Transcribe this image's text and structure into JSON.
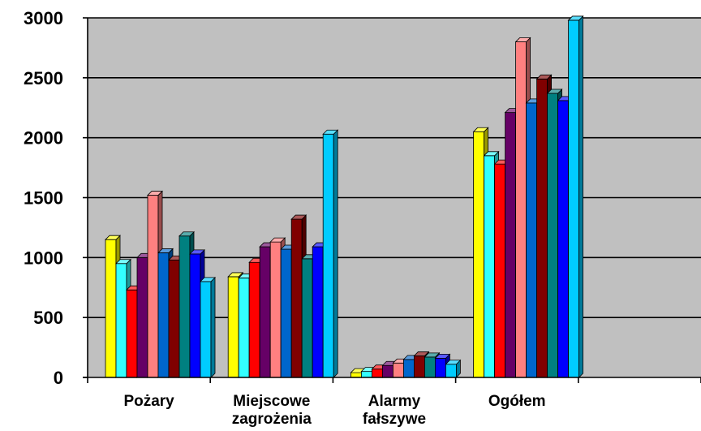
{
  "chart_data": {
    "type": "bar",
    "title": "",
    "xlabel": "",
    "ylabel": "",
    "ylim": [
      0,
      3000
    ],
    "yticks": [
      0,
      500,
      1000,
      1500,
      2000,
      2500,
      3000
    ],
    "ytick_labels": [
      "0",
      "500",
      "1000",
      "1500",
      "2000",
      "2500",
      "3000"
    ],
    "grid": true,
    "legend": "none",
    "plot_background": "#c0c0c0",
    "categories": [
      [
        "Pożary"
      ],
      [
        "Miejscowe",
        "zagrożenia"
      ],
      [
        "Alarmy",
        "fałszywe"
      ],
      [
        "Ogółem"
      ],
      [
        ""
      ]
    ],
    "series": [
      {
        "color": "#ffff00",
        "values": [
          1150,
          840,
          40,
          2050,
          null
        ]
      },
      {
        "color": "#33ffff",
        "values": [
          950,
          830,
          50,
          1850,
          null
        ]
      },
      {
        "color": "#ff0000",
        "values": [
          730,
          960,
          70,
          1780,
          null
        ]
      },
      {
        "color": "#660066",
        "values": [
          1000,
          1090,
          100,
          2210,
          null
        ]
      },
      {
        "color": "#ff8080",
        "values": [
          1520,
          1130,
          120,
          2800,
          null
        ]
      },
      {
        "color": "#0066cc",
        "values": [
          1040,
          1070,
          150,
          2290,
          null
        ]
      },
      {
        "color": "#800000",
        "values": [
          980,
          1320,
          180,
          2490,
          null
        ]
      },
      {
        "color": "#008080",
        "values": [
          1180,
          990,
          170,
          2370,
          null
        ]
      },
      {
        "color": "#0000ff",
        "values": [
          1030,
          1090,
          160,
          2310,
          null
        ]
      },
      {
        "color": "#00ccff",
        "values": [
          800,
          2030,
          110,
          2980,
          null
        ]
      }
    ]
  }
}
